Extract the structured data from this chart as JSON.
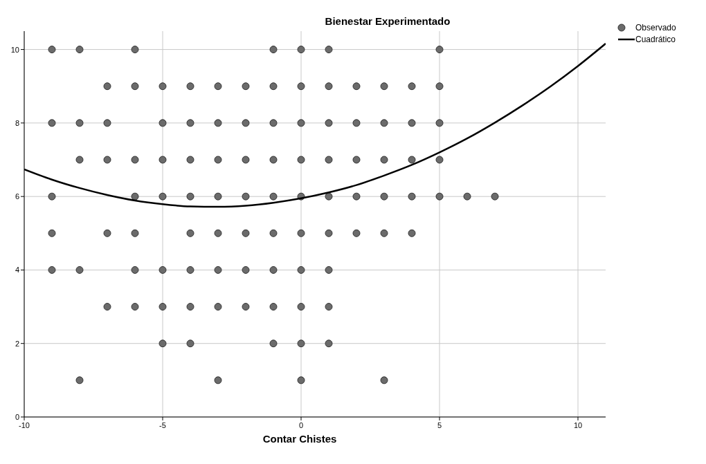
{
  "chart_data": {
    "type": "scatter",
    "ylabel": "Bienestar Experimentado",
    "xlabel": "Contar Chistes",
    "xlim": [
      -10,
      11
    ],
    "ylim": [
      0,
      10.5
    ],
    "xticks": [
      -10,
      -5,
      0,
      5,
      10
    ],
    "yticks": [
      0,
      2,
      4,
      6,
      8,
      10
    ],
    "grid": true,
    "legend": "top right",
    "series": [
      {
        "name": "Observado",
        "color": "#6b6b6b",
        "marker": "circle",
        "x": [
          -9,
          -8,
          -6,
          -1,
          0,
          1,
          5,
          -7,
          -6,
          -5,
          -4,
          -3,
          -2,
          -1,
          0,
          1,
          2,
          3,
          4,
          5,
          -9,
          -8,
          -7,
          -5,
          -4,
          -3,
          -2,
          -1,
          0,
          1,
          2,
          3,
          4,
          5,
          -8,
          -7,
          -6,
          -5,
          -4,
          -3,
          -2,
          -1,
          0,
          1,
          2,
          3,
          4,
          5,
          -9,
          -6,
          -5,
          -4,
          -3,
          -2,
          -1,
          0,
          1,
          2,
          3,
          4,
          5,
          6,
          7,
          -9,
          -7,
          -6,
          -4,
          -3,
          -2,
          -1,
          0,
          1,
          2,
          3,
          4,
          -9,
          -8,
          -6,
          -5,
          -4,
          -3,
          -2,
          -1,
          0,
          1,
          -7,
          -6,
          -5,
          -4,
          -3,
          -2,
          -1,
          0,
          1,
          -5,
          -4,
          -1,
          0,
          1,
          -8,
          -3,
          0,
          3
        ],
        "values": [
          10,
          10,
          10,
          10,
          10,
          10,
          10,
          9,
          9,
          9,
          9,
          9,
          9,
          9,
          9,
          9,
          9,
          9,
          9,
          9,
          8,
          8,
          8,
          8,
          8,
          8,
          8,
          8,
          8,
          8,
          8,
          8,
          8,
          8,
          7,
          7,
          7,
          7,
          7,
          7,
          7,
          7,
          7,
          7,
          7,
          7,
          7,
          7,
          6,
          6,
          6,
          6,
          6,
          6,
          6,
          6,
          6,
          6,
          6,
          6,
          6,
          6,
          6,
          5,
          5,
          5,
          5,
          5,
          5,
          5,
          5,
          5,
          5,
          5,
          5,
          4,
          4,
          4,
          4,
          4,
          4,
          4,
          4,
          4,
          4,
          3,
          3,
          3,
          3,
          3,
          3,
          3,
          3,
          3,
          2,
          2,
          2,
          2,
          2,
          1,
          1,
          1,
          1
        ]
      },
      {
        "name": "Cuadrático",
        "type": "line",
        "color": "#000000",
        "line_style": "solid",
        "x": [
          -10,
          -9,
          -8,
          -7,
          -6,
          -5,
          -4,
          -3,
          -2,
          -1,
          0,
          1,
          2,
          3,
          4,
          5,
          6,
          7,
          8,
          9,
          10,
          11
        ],
        "values": [
          6.74,
          6.46,
          6.23,
          6.04,
          5.89,
          5.79,
          5.73,
          5.72,
          5.75,
          5.83,
          5.95,
          6.11,
          6.31,
          6.57,
          6.86,
          7.2,
          7.58,
          8.01,
          8.48,
          8.99,
          9.55,
          10.16
        ]
      }
    ]
  }
}
